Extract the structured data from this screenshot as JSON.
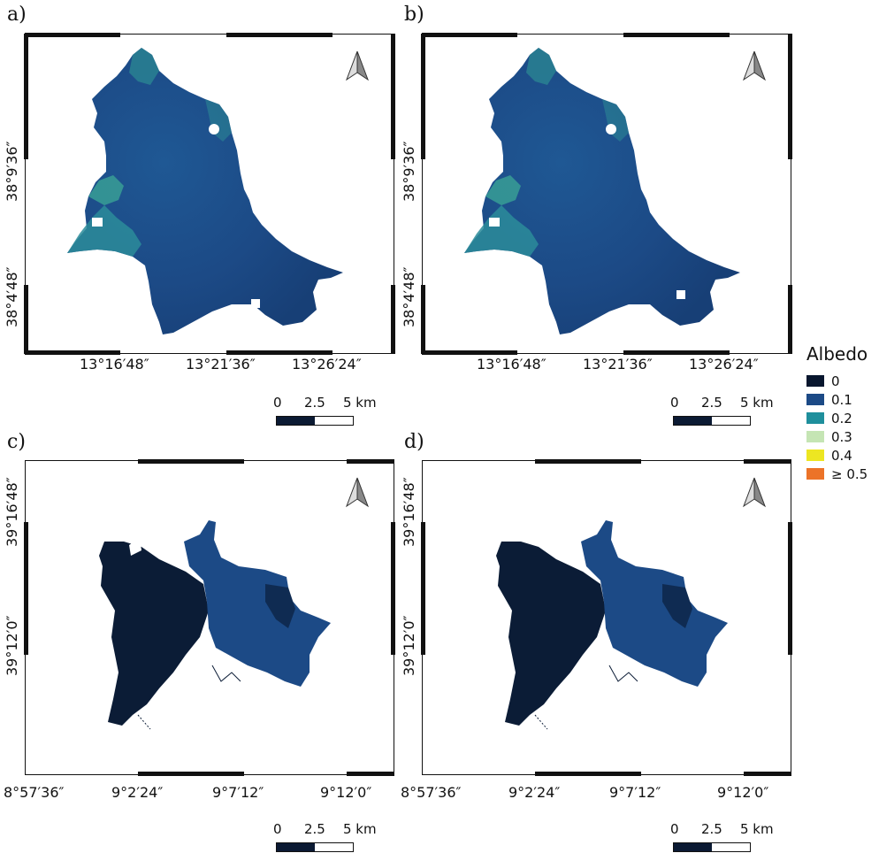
{
  "panels": [
    {
      "letter": "a)",
      "x_ticks": [
        "13°16′48″",
        "13°21′36″",
        "13°26′24″"
      ],
      "y_ticks": [
        "38°9′36″",
        "38°4′48″"
      ]
    },
    {
      "letter": "b)",
      "x_ticks": [
        "13°16′48″",
        "13°21′36″",
        "13°26′24″"
      ],
      "y_ticks": [
        "38°9′36″",
        "38°4′48″"
      ]
    },
    {
      "letter": "c)",
      "x_ticks": [
        "8°57′36″",
        "9°2′24″",
        "9°7′12″",
        "9°12′0″"
      ],
      "y_ticks": [
        "39°16′48″",
        "39°12′0″"
      ]
    },
    {
      "letter": "d)",
      "x_ticks": [
        "8°57′36″",
        "9°2′24″",
        "9°7′12″",
        "9°12′0″"
      ],
      "y_ticks": [
        "39°16′48″",
        "39°12′0″"
      ]
    }
  ],
  "scale_bar": {
    "labels": [
      "0",
      "2.5",
      "5 km"
    ]
  },
  "legend": {
    "title": "Albedo",
    "items": [
      {
        "label": "0",
        "color": "#08162e"
      },
      {
        "label": "0.1",
        "color": "#1c4a86"
      },
      {
        "label": "0.2",
        "color": "#1f8f9c"
      },
      {
        "label": "0.3",
        "color": "#c5e5b4"
      },
      {
        "label": "0.4",
        "color": "#ede622"
      },
      {
        "label": "≥ 0.5",
        "color": "#ec7328"
      }
    ]
  }
}
